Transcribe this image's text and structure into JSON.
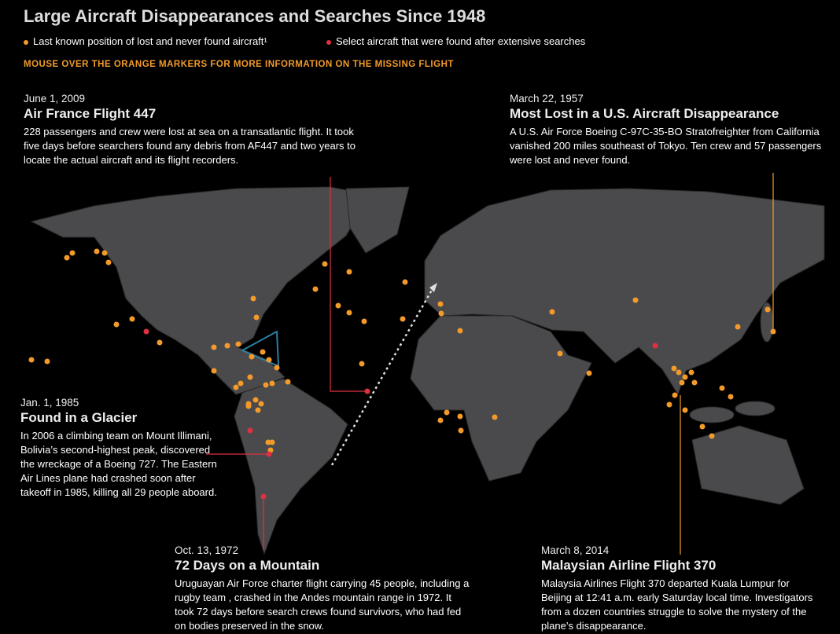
{
  "header": {
    "title": "Large Aircraft Disappearances and Searches Since 1948",
    "legend": [
      "Last known position of lost and never found aircraft¹",
      "Select aircraft that were found after extensive searches"
    ],
    "instruction": "MOUSE OVER THE ORANGE MARKERS FOR MORE INFORMATION ON THE MISSING FLIGHT"
  },
  "annotations": [
    {
      "date": "June 1, 2009",
      "heading": "Air France Flight 447",
      "body": "228 passengers and crew were lost at sea on a transatlantic flight. It took five days before searchers found any debris from AF447 and two years to locate the actual aircraft and its flight recorders."
    },
    {
      "date": "March 22, 1957",
      "heading": "Most Lost in a U.S. Aircraft Disappearance",
      "body": "A U.S. Air Force Boeing C-97C-35-BO Stratofreighter from California vanished 200 miles southeast of Tokyo. Ten crew and 57 passengers were lost and never found."
    },
    {
      "date": "Jan. 1, 1985",
      "heading": "Found in a Glacier",
      "body": "In 2006 a climbing team on Mount Illimani, Bolivia’s second-highest peak, discovered the wreckage of a Boeing 727. The Eastern Air Lines plane had crashed soon after takeoff in 1985, killing all 29 people aboard."
    },
    {
      "date": "Oct. 13, 1972",
      "heading": "72 Days on a Mountain",
      "body": "Uruguayan Air Force charter flight carrying 45 people, including a rugby team , crashed in the Andes mountain range in 1972. It took 72 days before search crews found survivors, who had fed on bodies preserved in the snow."
    },
    {
      "date": "March 8, 2014",
      "heading": "Malaysian Airline Flight 370",
      "body": "Malaysia Airlines Flight 370 departed Kuala Lumpur for Beijing at 12:41 a.m. early Saturday local time. Investigators from a dozen countries struggle to solve the mystery of the plane’s disappearance."
    }
  ]
}
